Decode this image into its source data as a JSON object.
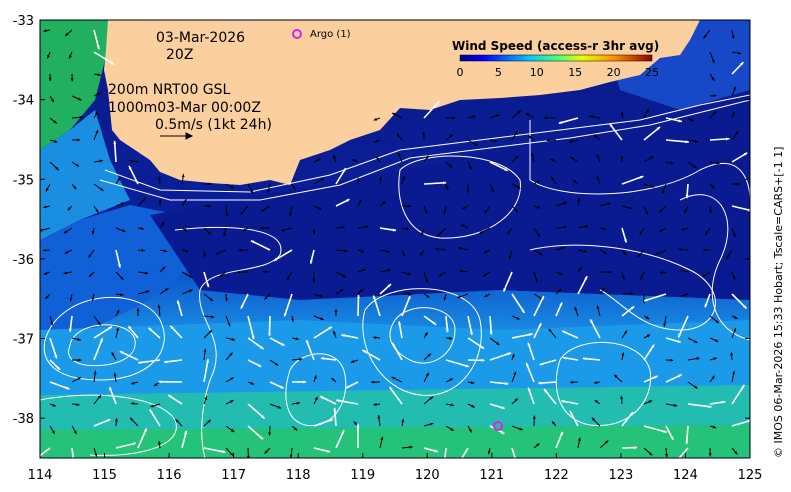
{
  "map": {
    "date_label": "03-Mar-2026",
    "time_label": "20Z",
    "model_line_1": "200m  NRT00 GSL",
    "model_line_2": "1000m03-Mar 00:00Z",
    "scale_label": "0.5m/s (1kt 24h)",
    "argo_label": "Argo (1)",
    "credit": "© IMOS 06-Mar-2026 15:33 Hobart; Tscale=CARS+[-1 1]",
    "lon_range": [
      114,
      125
    ],
    "lat_range": [
      -38.5,
      -33
    ],
    "lon_ticks": [
      "114",
      "115",
      "116",
      "117",
      "118",
      "119",
      "120",
      "121",
      "122",
      "123",
      "124",
      "125"
    ],
    "lat_ticks": [
      "-33",
      "-34",
      "-35",
      "-36",
      "-37",
      "-38"
    ],
    "argo_floats": [
      {
        "lon": 117.9,
        "lat": -33.17,
        "in_legend": true
      },
      {
        "lon": 121.1,
        "lat": -38.1,
        "in_legend": false
      }
    ],
    "colors": {
      "land": "#fccf9f",
      "argo": "#e020e0",
      "contour": "#ffffff"
    }
  },
  "legend": {
    "title": "Wind Speed (access-r 3hr avg)",
    "ticks": [
      "0",
      "5",
      "10",
      "15",
      "20",
      "25"
    ],
    "range": [
      0,
      25
    ]
  }
}
